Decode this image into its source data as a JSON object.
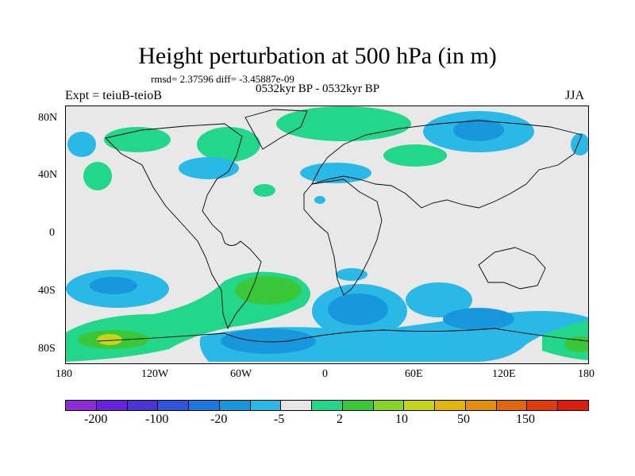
{
  "header": {
    "title": "Height perturbation at 500 hPa (in m)",
    "stats": "rmsd= 2.37596 diff= -3.45887e-09",
    "experiment": "Expt = teiuB-teioB",
    "period": "0532kyr BP - 0532kyr BP",
    "season": "JJA"
  },
  "map": {
    "lat_ticks": [
      "80N",
      "40N",
      "0",
      "40S",
      "80S"
    ],
    "lon_ticks": [
      "180",
      "120W",
      "60W",
      "0",
      "60E",
      "120E",
      "180"
    ]
  },
  "colorbar": {
    "colors": [
      "#8d2bd9",
      "#6a22e0",
      "#4b33d8",
      "#2f54e0",
      "#1e78e0",
      "#1898dc",
      "#2ab8e6",
      "#e6e6e6",
      "#22d68a",
      "#3ac83a",
      "#86d428",
      "#c8d418",
      "#e2b40e",
      "#e48e0c",
      "#e2660c",
      "#de3a0c",
      "#e01c10"
    ],
    "labels": [
      "-200",
      "-100",
      "-20",
      "-5",
      "2",
      "10",
      "50",
      "150"
    ]
  }
}
